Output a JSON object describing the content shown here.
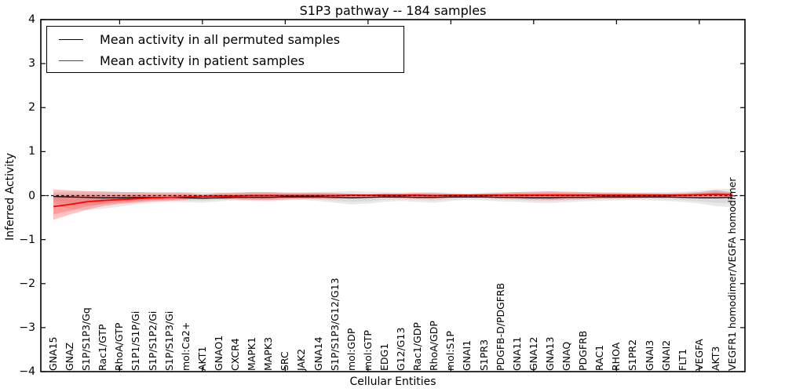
{
  "figure": {
    "title": "S1P3 pathway -- 184 samples",
    "xlabel": "Cellular Entities",
    "ylabel": "Inferred Activity"
  },
  "legend": {
    "items": [
      {
        "label": "Mean activity in all permuted samples",
        "color": "#000000"
      },
      {
        "label": "Mean activity in patient samples",
        "color": "#ff0000"
      }
    ]
  },
  "chart_data": {
    "type": "line",
    "title": "S1P3 pathway -- 184 samples",
    "xlabel": "Cellular Entities",
    "ylabel": "Inferred Activity",
    "ylim": [
      -4,
      4
    ],
    "yticks": [
      4,
      3,
      2,
      1,
      0,
      -1,
      -2,
      -3,
      -4
    ],
    "x_tick_indices": [
      4,
      9,
      14,
      19,
      24,
      29,
      34,
      39
    ],
    "grid": false,
    "legend_position": "upper left",
    "zero_line": {
      "y": 0,
      "style": "dashed",
      "color": "#000000"
    },
    "categories": [
      "GNA15",
      "GNAZ",
      "S1P/S1P3/Gq",
      "Rac1/GTP",
      "RhoA/GTP",
      "S1P1/S1P/Gi",
      "S1P/S1P2/Gi",
      "S1P/S1P3/Gi",
      "mol:Ca2+",
      "AKT1",
      "GNAO1",
      "CXCR4",
      "MAPK1",
      "MAPK3",
      "SRC",
      "JAK2",
      "GNA14",
      "S1P/S1P3/G12/G13",
      "mol:GDP",
      "mol:GTP",
      "EDG1",
      "G12/G13",
      "Rac1/GDP",
      "RhoA/GDP",
      "mol:S1P",
      "GNAI1",
      "S1PR3",
      "PDGFB-D/PDGFRB",
      "GNA11",
      "GNA12",
      "GNA13",
      "GNAQ",
      "PDGFRB",
      "RAC1",
      "RHOA",
      "S1PR2",
      "GNAI3",
      "GNAI2",
      "FLT1",
      "VEGFA",
      "AKT3",
      "VEGFR1 homodimer/VEGFA homodimer"
    ],
    "series": [
      {
        "name": "Mean activity in all permuted samples",
        "color": "#000000",
        "band_color": "#bbbbbb",
        "values": [
          -0.02,
          -0.03,
          -0.04,
          -0.05,
          -0.05,
          -0.04,
          -0.04,
          -0.04,
          -0.05,
          -0.06,
          -0.05,
          -0.04,
          -0.04,
          -0.04,
          -0.03,
          -0.03,
          -0.03,
          -0.04,
          -0.05,
          -0.04,
          -0.03,
          -0.03,
          -0.04,
          -0.04,
          -0.03,
          -0.03,
          -0.03,
          -0.04,
          -0.04,
          -0.05,
          -0.05,
          -0.04,
          -0.04,
          -0.03,
          -0.03,
          -0.03,
          -0.03,
          -0.03,
          -0.04,
          -0.05,
          -0.05,
          -0.04
        ],
        "band_lo": [
          -0.15,
          -0.3,
          -0.33,
          -0.3,
          -0.25,
          -0.2,
          -0.16,
          -0.14,
          -0.15,
          -0.16,
          -0.13,
          -0.11,
          -0.12,
          -0.13,
          -0.11,
          -0.1,
          -0.12,
          -0.16,
          -0.2,
          -0.18,
          -0.14,
          -0.12,
          -0.14,
          -0.16,
          -0.12,
          -0.1,
          -0.11,
          -0.13,
          -0.14,
          -0.16,
          -0.17,
          -0.15,
          -0.13,
          -0.12,
          -0.11,
          -0.1,
          -0.11,
          -0.12,
          -0.14,
          -0.18,
          -0.24,
          -0.26
        ],
        "band_hi": [
          0.08,
          0.09,
          0.1,
          0.1,
          0.09,
          0.08,
          0.08,
          0.08,
          0.08,
          0.08,
          0.07,
          0.07,
          0.08,
          0.08,
          0.07,
          0.07,
          0.08,
          0.09,
          0.1,
          0.09,
          0.08,
          0.07,
          0.08,
          0.08,
          0.07,
          0.06,
          0.07,
          0.08,
          0.08,
          0.09,
          0.09,
          0.08,
          0.08,
          0.07,
          0.07,
          0.07,
          0.07,
          0.08,
          0.09,
          0.11,
          0.14,
          0.16
        ]
      },
      {
        "name": "Mean activity in patient samples",
        "color": "#ff0000",
        "band_color": "#ff4444",
        "values": [
          -0.25,
          -0.2,
          -0.14,
          -0.11,
          -0.09,
          -0.07,
          -0.05,
          -0.04,
          -0.03,
          -0.02,
          -0.01,
          -0.01,
          0.0,
          0.0,
          0.0,
          0.0,
          0.0,
          0.0,
          0.01,
          0.01,
          0.01,
          0.01,
          0.01,
          0.0,
          0.01,
          0.01,
          0.01,
          0.01,
          0.01,
          0.01,
          0.01,
          0.01,
          0.01,
          0.01,
          0.01,
          0.01,
          0.01,
          0.01,
          0.01,
          0.02,
          0.03,
          0.02
        ],
        "band_lo": [
          -0.55,
          -0.43,
          -0.32,
          -0.24,
          -0.19,
          -0.16,
          -0.13,
          -0.12,
          -0.1,
          -0.04,
          -0.08,
          -0.09,
          -0.1,
          -0.1,
          -0.09,
          -0.08,
          -0.08,
          -0.07,
          -0.04,
          -0.03,
          -0.05,
          -0.06,
          -0.07,
          -0.07,
          -0.05,
          -0.03,
          -0.05,
          -0.06,
          -0.08,
          -0.09,
          -0.1,
          -0.09,
          -0.08,
          -0.07,
          -0.07,
          -0.06,
          -0.05,
          -0.05,
          -0.05,
          -0.04,
          -0.03,
          -0.04
        ],
        "band_hi": [
          0.14,
          0.12,
          0.1,
          0.09,
          0.08,
          0.08,
          0.07,
          0.07,
          0.07,
          0.03,
          0.06,
          0.07,
          0.08,
          0.08,
          0.07,
          0.07,
          0.07,
          0.06,
          0.04,
          0.03,
          0.05,
          0.05,
          0.06,
          0.06,
          0.04,
          0.03,
          0.05,
          0.06,
          0.08,
          0.09,
          0.1,
          0.09,
          0.08,
          0.07,
          0.07,
          0.06,
          0.06,
          0.05,
          0.06,
          0.08,
          0.13,
          0.07
        ]
      }
    ]
  }
}
